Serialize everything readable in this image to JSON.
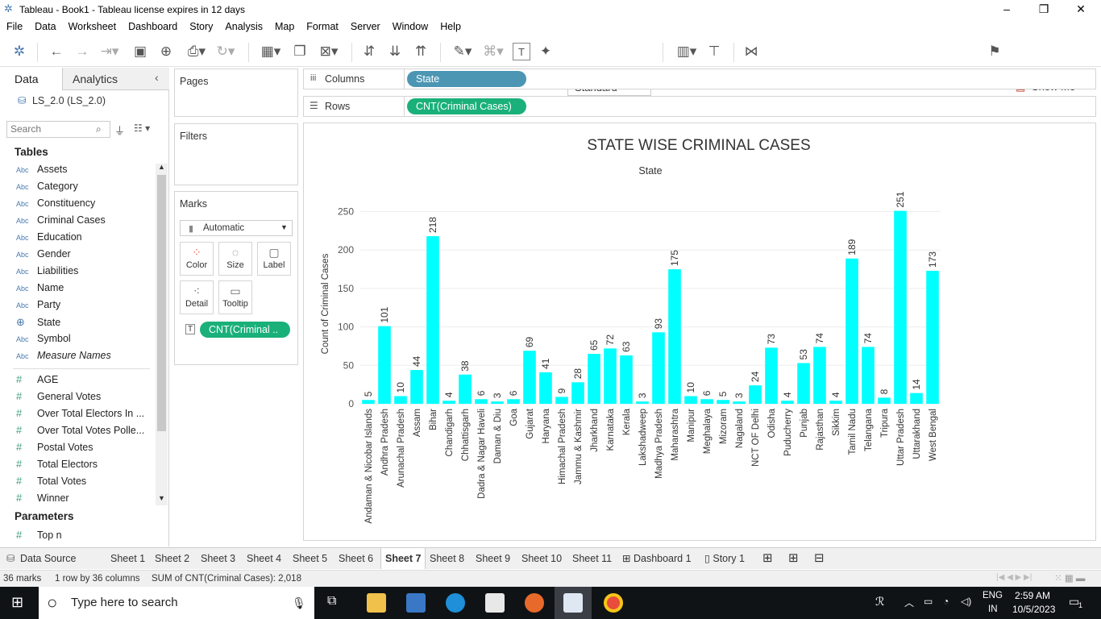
{
  "window": {
    "title": "Tableau - Book1 - Tableau license expires in 12 days",
    "minimize": "–",
    "restore": "❐",
    "close": "✕"
  },
  "menu": [
    "File",
    "Data",
    "Worksheet",
    "Dashboard",
    "Story",
    "Analysis",
    "Map",
    "Format",
    "Server",
    "Window",
    "Help"
  ],
  "toolbar": {
    "fit_mode": "Standard",
    "show_me": "Show Me"
  },
  "left_pane": {
    "tab_data": "Data",
    "tab_analytics": "Analytics",
    "datasource": "LS_2.0 (LS_2.0)",
    "search_placeholder": "Search",
    "tables_header": "Tables",
    "dimensions": [
      {
        "type": "Abc",
        "name": "Assets"
      },
      {
        "type": "Abc",
        "name": "Category"
      },
      {
        "type": "Abc",
        "name": "Constituency"
      },
      {
        "type": "Abc",
        "name": "Criminal Cases"
      },
      {
        "type": "Abc",
        "name": "Education"
      },
      {
        "type": "Abc",
        "name": "Gender"
      },
      {
        "type": "Abc",
        "name": "Liabilities"
      },
      {
        "type": "Abc",
        "name": "Name"
      },
      {
        "type": "Abc",
        "name": "Party"
      },
      {
        "type": "globe",
        "name": "State"
      },
      {
        "type": "Abc",
        "name": "Symbol"
      },
      {
        "type": "Abc",
        "name": "Measure Names"
      }
    ],
    "measures": [
      "AGE",
      "General Votes",
      "Over Total Electors  In ...",
      "Over Total Votes Polle...",
      "Postal Votes",
      "Total Electors",
      "Total Votes",
      "Winner"
    ],
    "parameters_header": "Parameters",
    "parameters": [
      "Top n"
    ]
  },
  "shelves": {
    "pages": "Pages",
    "filters": "Filters",
    "marks": "Marks",
    "mark_type": "Automatic",
    "mark_buttons": [
      "Color",
      "Size",
      "Label",
      "Detail",
      "Tooltip"
    ],
    "marks_pill": "CNT(Criminal ..",
    "columns_label": "Columns",
    "columns_pill": "State",
    "rows_label": "Rows",
    "rows_pill": "CNT(Criminal Cases)"
  },
  "chart_data": {
    "type": "bar",
    "title": "STATE WISE CRIMINAL CASES",
    "xlabel": "State",
    "ylabel": "Count of Criminal Cases",
    "ylim": [
      0,
      260
    ],
    "yticks": [
      0,
      50,
      100,
      150,
      200,
      250
    ],
    "color": "#00ffff",
    "categories": [
      "Andaman & Nicobar Islands",
      "Andhra Pradesh",
      "Arunachal Pradesh",
      "Assam",
      "Bihar",
      "Chandigarh",
      "Chhattisgarh",
      "Dadra & Nagar Haveli",
      "Daman & Diu",
      "Goa",
      "Gujarat",
      "Haryana",
      "Himachal Pradesh",
      "Jammu & Kashmir",
      "Jharkhand",
      "Karnataka",
      "Kerala",
      "Lakshadweep",
      "Madhya Pradesh",
      "Maharashtra",
      "Manipur",
      "Meghalaya",
      "Mizoram",
      "Nagaland",
      "NCT OF Delhi",
      "Odisha",
      "Puducherry",
      "Punjab",
      "Rajasthan",
      "Sikkim",
      "Tamil Nadu",
      "Telangana",
      "Tripura",
      "Uttar Pradesh",
      "Uttarakhand",
      "West Bengal"
    ],
    "values": [
      5,
      101,
      10,
      44,
      218,
      4,
      38,
      6,
      3,
      6,
      69,
      41,
      9,
      28,
      65,
      72,
      63,
      3,
      93,
      175,
      10,
      6,
      5,
      3,
      24,
      73,
      4,
      53,
      74,
      4,
      189,
      74,
      8,
      251,
      14,
      173
    ]
  },
  "sheet_tabs": {
    "data_source": "Data Source",
    "sheets": [
      "Sheet 1",
      "Sheet 2",
      "Sheet 3",
      "Sheet 4",
      "Sheet 5",
      "Sheet 6",
      "Sheet 7",
      "Sheet 8",
      "Sheet 9",
      "Sheet 10",
      "Sheet 11"
    ],
    "active": "Sheet 7",
    "dashboard": "Dashboard 1",
    "story": "Story 1"
  },
  "status": {
    "marks": "36 marks",
    "layout": "1 row by 36 columns",
    "sum": "SUM of CNT(Criminal Cases): 2,018"
  },
  "taskbar": {
    "search": "Type here to search",
    "lang1": "ENG",
    "lang2": "IN",
    "time": "2:59 AM",
    "date": "10/5/2023",
    "notif": "1"
  }
}
